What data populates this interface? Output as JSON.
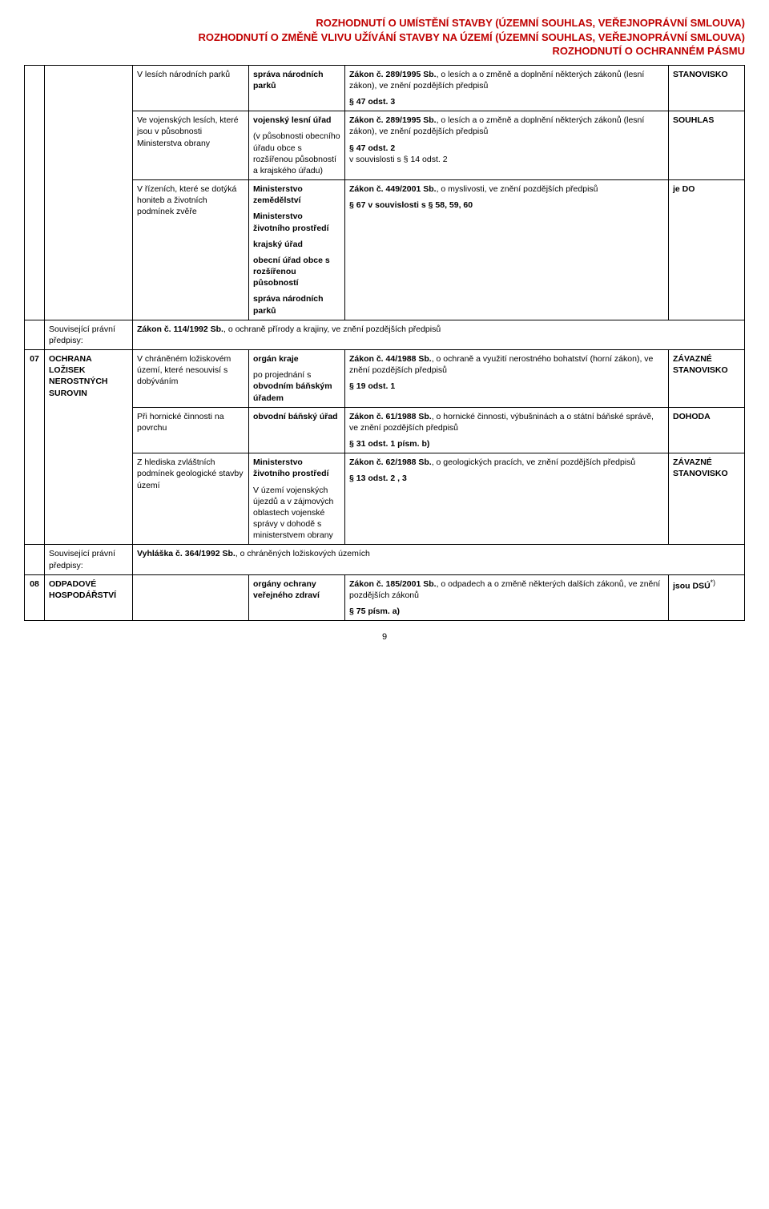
{
  "header": {
    "line1": "ROZHODNUTÍ O UMÍSTĚNÍ STAVBY (ÚZEMNÍ SOUHLAS, VEŘEJNOPRÁVNÍ SMLOUVA)",
    "line2": "ROZHODNUTÍ O ZMĚNĚ VLIVU UŽÍVÁNÍ STAVBY NA ÚZEMÍ (ÚZEMNÍ SOUHLAS, VEŘEJNOPRÁVNÍ SMLOUVA)",
    "line3": "ROZHODNUTÍ  O OCHRANNÉM PÁSMU"
  },
  "r1": {
    "cond": "V lesích národních parků",
    "auth": "správa národních parků",
    "law_title": "Zákon č. 289/1995 Sb.",
    "law_rest": ", o lesích a o změně a doplnění některých zákonů (lesní zákon), ve znění pozdějších předpisů",
    "law_sec": "§ 47 odst. 3",
    "type": "STANOVISKO"
  },
  "r2": {
    "cond": "Ve vojenských lesích, které jsou v působnosti Ministerstva obrany",
    "auth1": "vojenský lesní úřad",
    "auth2": "(v působnosti obecního úřadu obce s rozšířenou působností a krajského úřadu)",
    "law_title": "Zákon č. 289/1995 Sb.",
    "law_rest": ", o lesích a o změně a doplnění některých zákonů (lesní zákon), ve znění pozdějších předpisů",
    "law_sec1": "§ 47 odst. 2",
    "law_sec2": "v souvislosti s § 14 odst. 2",
    "type": "SOUHLAS"
  },
  "r3": {
    "cond": "V řízeních, které se dotýká honiteb a životních podmínek zvěře",
    "auth1": "Ministerstvo zemědělství",
    "auth2": "Ministerstvo životního prostředí",
    "auth3": "krajský úřad",
    "auth4": "obecní úřad obce s rozšířenou působností",
    "auth5": "správa národních parků",
    "law_title": "Zákon č. 449/2001 Sb.",
    "law_rest": ", o myslivosti, ve znění pozdějších předpisů",
    "law_sec": "§ 67 v souvislosti s § 58, 59, 60",
    "type": "je DO"
  },
  "related1": {
    "label": "Související právní předpisy:",
    "text_bold": "Zákon č. 114/1992 Sb.",
    "text_rest": ", o ochraně přírody a krajiny, ve znění pozdějších předpisů"
  },
  "r07": {
    "num": "07",
    "topic": "OCHRANA LOŽISEK NEROSTNÝCH SUROVIN"
  },
  "r07a": {
    "cond": "V chráněném ložiskovém území, které nesouvisí s dobýváním",
    "auth1": "orgán kraje",
    "auth2a": "po projednání s ",
    "auth2b": "obvodním báňským úřadem",
    "law_title": "Zákon č. 44/1988 Sb.",
    "law_rest": ", o ochraně a využití nerostného bohatství (horní zákon), ve znění pozdějších předpisů",
    "law_sec": "§ 19 odst. 1",
    "type": "ZÁVAZNÉ STANOVISKO"
  },
  "r07b": {
    "cond": "Při hornické činnosti na povrchu",
    "auth": "obvodní báňský úřad",
    "law_title": "Zákon č. 61/1988 Sb.",
    "law_rest": ", o hornické činnosti, výbušninách a o státní báňské správě, ve znění pozdějších předpisů",
    "law_sec": "§ 31 odst. 1 písm.  b)",
    "type": "DOHODA"
  },
  "r07c": {
    "cond": "Z hlediska zvláštních podmínek geologické stavby území",
    "auth1": "Ministerstvo životního prostředí",
    "auth2": "V území vojenských újezdů a v zájmových oblastech vojenské správy v dohodě s ministerstvem obrany",
    "law_title": "Zákon č. 62/1988 Sb.",
    "law_rest": ", o geologických pracích, ve znění pozdějších předpisů",
    "law_sec": "§ 13 odst. 2 , 3",
    "type": "ZÁVAZNÉ STANOVISKO"
  },
  "related2": {
    "label": "Související právní předpisy:",
    "text_bold": "Vyhláška č. 364/1992 Sb.",
    "text_rest": ", o chráněných ložiskových územích"
  },
  "r08": {
    "num": "08",
    "topic": "ODPADOVÉ HOSPODÁŘSTVÍ",
    "auth": "orgány ochrany veřejného zdraví",
    "law_title": "Zákon č. 185/2001 Sb.",
    "law_rest": ", o odpadech a o změně některých dalších zákonů, ve znění pozdějších zákonů",
    "law_sec": "§ 75 písm. a)",
    "type_pre": "jsou DSÚ",
    "type_sup": "*)"
  },
  "page_number": "9"
}
